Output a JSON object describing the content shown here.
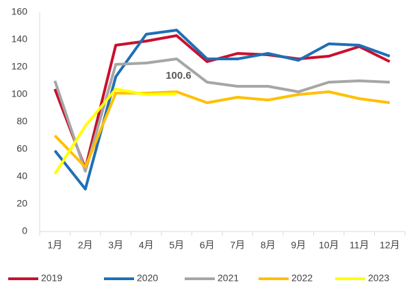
{
  "chart_data": {
    "type": "line",
    "categories": [
      "1月",
      "2月",
      "3月",
      "4月",
      "5月",
      "6月",
      "7月",
      "8月",
      "9月",
      "10月",
      "11月",
      "12月"
    ],
    "series": [
      {
        "name": "2019",
        "color": "#c8102e",
        "values": [
          104,
          46,
          136,
          139,
          143,
          124,
          130,
          129,
          126,
          128,
          135,
          124
        ]
      },
      {
        "name": "2020",
        "color": "#1f6fb5",
        "values": [
          59,
          31,
          113,
          144,
          147,
          126,
          126,
          130,
          125,
          137,
          136,
          128
        ]
      },
      {
        "name": "2021",
        "color": "#a6a6a6",
        "values": [
          110,
          44,
          122,
          123,
          126,
          109,
          106,
          106,
          102,
          109,
          110,
          109
        ]
      },
      {
        "name": "2022",
        "color": "#ffc000",
        "values": [
          70,
          47,
          101,
          101,
          102,
          94,
          98,
          96,
          100,
          102,
          97,
          94
        ]
      },
      {
        "name": "2023",
        "color": "#ffff00",
        "values": [
          42,
          77,
          104,
          100,
          100.6,
          null,
          null,
          null,
          null,
          null,
          null,
          null
        ]
      }
    ],
    "ylim": [
      0,
      160
    ],
    "yticks": [
      0,
      20,
      40,
      60,
      80,
      100,
      120,
      140,
      160
    ],
    "grid": false,
    "legend": "bottom"
  }
}
